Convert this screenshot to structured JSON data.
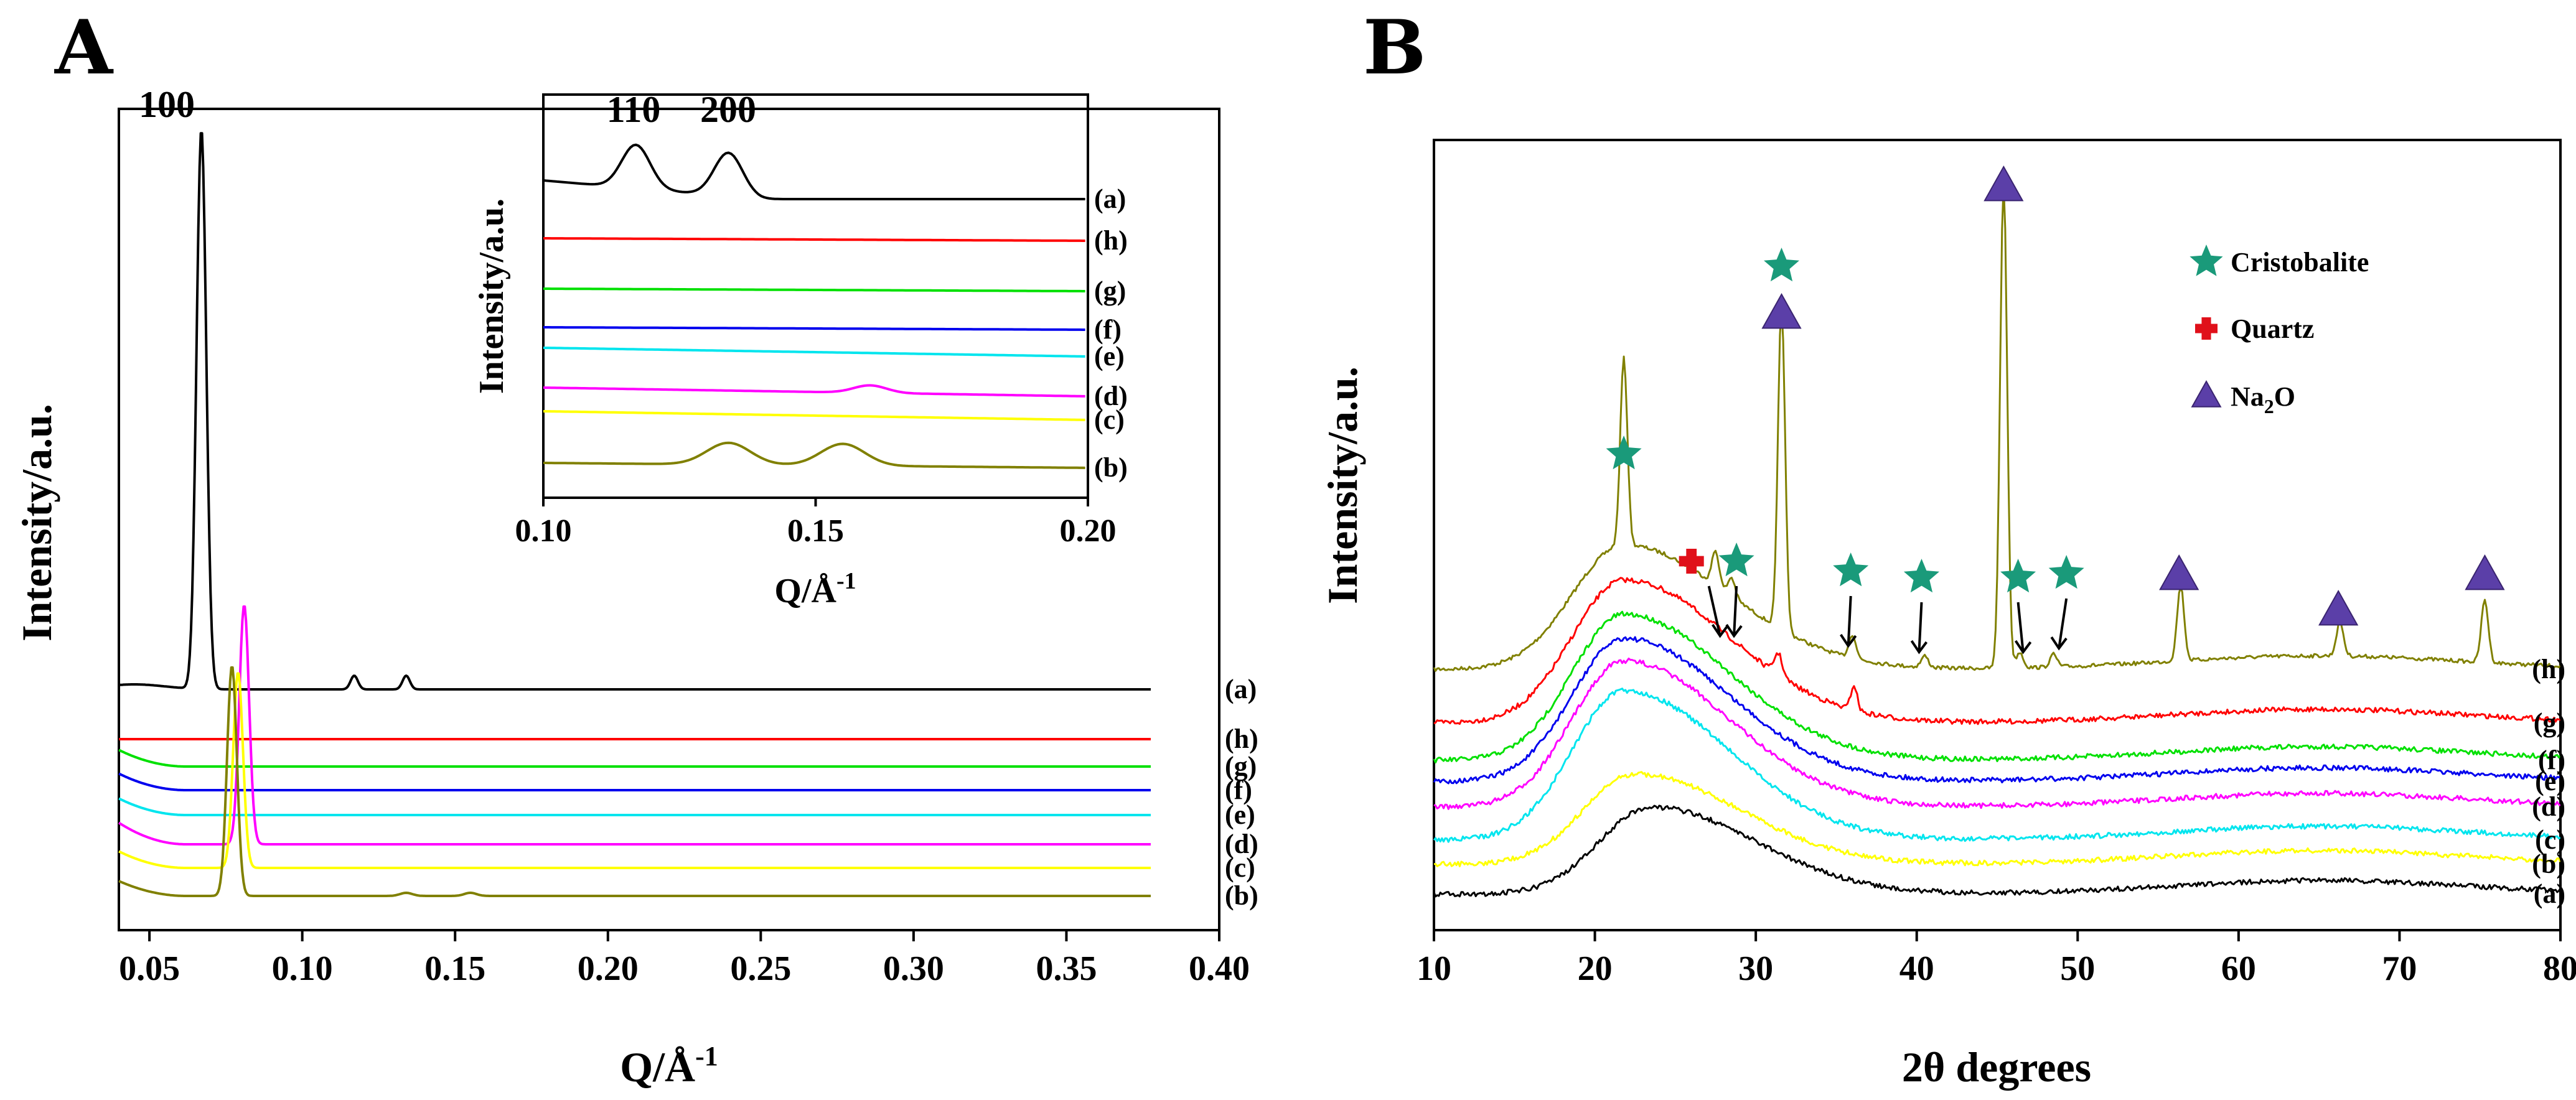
{
  "panels": {
    "A": {
      "letter": "A",
      "xlabel": "Q/Å",
      "xlabel_sup": "-1",
      "ylabel": "Intensity/a.u.",
      "xlim": [
        0.04,
        0.4
      ],
      "xticks": [
        "0.05",
        "0.10",
        "0.15",
        "0.20",
        "0.25",
        "0.30",
        "0.35",
        "0.40"
      ],
      "peak_label": "100",
      "inset": {
        "xlabel": "Q/Å",
        "xlabel_sup": "-1",
        "ylabel": "Intensity/a.u.",
        "xlim": [
          0.1,
          0.2
        ],
        "xticks": [
          "0.10",
          "0.15",
          "0.20"
        ],
        "peak_labels": [
          "110",
          "200"
        ],
        "series_labels": [
          "(a)",
          "(h)",
          "(g)",
          "(f)",
          "(e)",
          "(d)",
          "(c)",
          "(b)"
        ]
      }
    },
    "B": {
      "letter": "B",
      "xlabel": "2θ degrees",
      "ylabel": "Intensity/a.u.",
      "xlim": [
        10,
        80
      ],
      "xticks": [
        "10",
        "20",
        "30",
        "40",
        "50",
        "60",
        "70",
        "80"
      ],
      "legend": [
        {
          "label": "Cristobalite",
          "symbol": "star",
          "color": "#1a9a7a"
        },
        {
          "label": "Quartz",
          "symbol": "cross",
          "color": "#e0101a"
        },
        {
          "label": "Na",
          "sub": "2",
          "tail": "O",
          "symbol": "triangle",
          "color": "#5b3fa8"
        }
      ]
    }
  },
  "chart_data": [
    {
      "type": "line",
      "panel": "A",
      "title": "",
      "xlabel": "Q/Å-1",
      "ylabel": "Intensity/a.u.",
      "xlim": [
        0.04,
        0.4
      ],
      "series": [
        {
          "name": "(a)",
          "color": "#000000",
          "peak_q": 0.067,
          "peak_height": 1.0,
          "minor_peaks": [
            0.117,
            0.134
          ],
          "offset": 7
        },
        {
          "name": "(h)",
          "color": "#ff0000",
          "peak_q": null,
          "offset": 6
        },
        {
          "name": "(g)",
          "color": "#00e000",
          "peak_q": null,
          "offset": 5
        },
        {
          "name": "(f)",
          "color": "#0000ee",
          "peak_q": null,
          "offset": 4
        },
        {
          "name": "(e)",
          "color": "#00e5ee",
          "peak_q": null,
          "offset": 3
        },
        {
          "name": "(d)",
          "color": "#ff00ff",
          "peak_q": 0.081,
          "peak_height": 0.45,
          "offset": 2
        },
        {
          "name": "(c)",
          "color": "#ffff00",
          "peak_q": 0.079,
          "peak_height": 0.35,
          "offset": 1
        },
        {
          "name": "(b)",
          "color": "#808000",
          "peak_q": 0.077,
          "peak_height": 0.55,
          "offset": 0
        }
      ]
    },
    {
      "type": "line",
      "panel": "A-inset",
      "xlim": [
        0.1,
        0.2
      ],
      "series": [
        {
          "name": "(a)",
          "color": "#000000",
          "peaks": [
            0.117,
            0.134
          ]
        },
        {
          "name": "(h)",
          "color": "#ff0000",
          "peaks": []
        },
        {
          "name": "(g)",
          "color": "#00e000",
          "peaks": []
        },
        {
          "name": "(f)",
          "color": "#0000ee",
          "peaks": []
        },
        {
          "name": "(e)",
          "color": "#00e5ee",
          "peaks": []
        },
        {
          "name": "(d)",
          "color": "#ff00ff",
          "peaks": [
            0.16
          ]
        },
        {
          "name": "(c)",
          "color": "#ffff00",
          "peaks": []
        },
        {
          "name": "(b)",
          "color": "#808000",
          "peaks": [
            0.134,
            0.155
          ]
        }
      ]
    },
    {
      "type": "line",
      "panel": "B",
      "xlabel": "2θ degrees",
      "ylabel": "Intensity/a.u.",
      "xlim": [
        10,
        80
      ],
      "series": [
        {
          "name": "(h)",
          "color": "#808000",
          "hump_center": 21.8,
          "peaks": [
            21.8,
            27.5,
            28.5,
            31.6,
            36.0,
            40.5,
            45.4,
            46.4,
            48.5,
            56.4,
            66.3,
            75.3
          ]
        },
        {
          "name": "(g)",
          "color": "#ff0000",
          "hump_center": 21.8,
          "peaks": [
            31.4,
            36.1
          ]
        },
        {
          "name": "(f)",
          "color": "#00e000",
          "hump_center": 21.8,
          "peaks": []
        },
        {
          "name": "(e)",
          "color": "#0000ee",
          "hump_center": 21.8,
          "peaks": []
        },
        {
          "name": "(d)",
          "color": "#ff00ff",
          "hump_center": 21.8,
          "peaks": []
        },
        {
          "name": "(c)",
          "color": "#00e5ee",
          "hump_center": 21.8,
          "peaks": []
        },
        {
          "name": "(b)",
          "color": "#ffff00",
          "hump_center": 22.5,
          "peaks": []
        },
        {
          "name": "(a)",
          "color": "#000000",
          "hump_center": 23.5,
          "peaks": []
        }
      ],
      "markers": [
        {
          "type": "star",
          "x": 21.8,
          "phase": "Cristobalite"
        },
        {
          "type": "cross",
          "x": 26.0,
          "phase": "Quartz"
        },
        {
          "type": "star",
          "x": 28.8,
          "phase": "Cristobalite"
        },
        {
          "type": "star",
          "x": 31.6,
          "phase": "Cristobalite"
        },
        {
          "type": "triangle",
          "x": 31.6,
          "phase": "Na2O"
        },
        {
          "type": "star",
          "x": 35.9,
          "phase": "Cristobalite"
        },
        {
          "type": "star",
          "x": 40.3,
          "phase": "Cristobalite"
        },
        {
          "type": "triangle",
          "x": 45.4,
          "phase": "Na2O"
        },
        {
          "type": "star",
          "x": 46.3,
          "phase": "Cristobalite"
        },
        {
          "type": "star",
          "x": 49.3,
          "phase": "Cristobalite"
        },
        {
          "type": "triangle",
          "x": 56.3,
          "phase": "Na2O"
        },
        {
          "type": "triangle",
          "x": 66.2,
          "phase": "Na2O"
        },
        {
          "type": "triangle",
          "x": 75.3,
          "phase": "Na2O"
        }
      ]
    }
  ]
}
